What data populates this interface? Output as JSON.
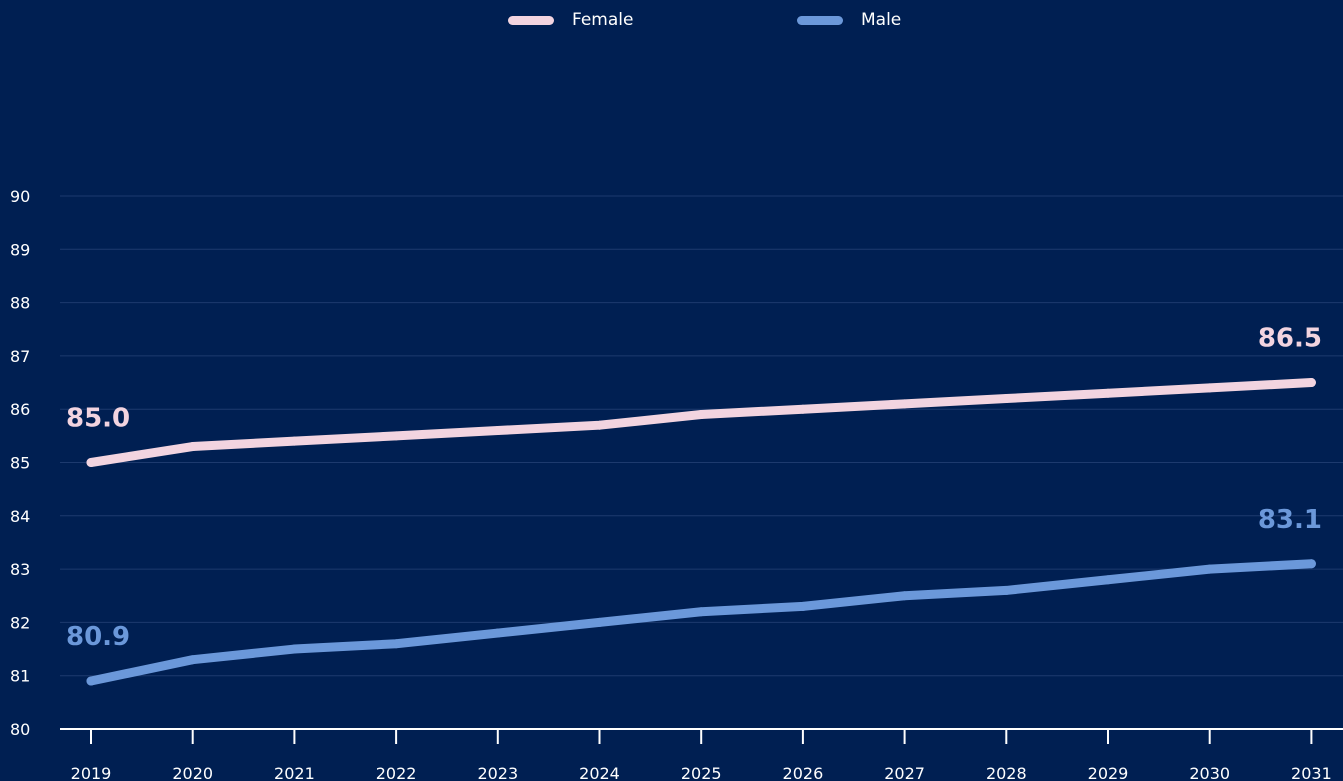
{
  "colors": {
    "background": "#001f52",
    "gridline": "#1d3a6e",
    "axis": "#ffffff",
    "text": "#ffffff"
  },
  "chart_data": {
    "type": "line",
    "x": [
      "2019",
      "2020",
      "2021",
      "2022",
      "2023",
      "2024",
      "2025",
      "2026",
      "2027",
      "2028",
      "2029",
      "2030",
      "2031"
    ],
    "ylim": [
      80,
      90
    ],
    "yticks": [
      80,
      81,
      82,
      83,
      84,
      85,
      86,
      87,
      88,
      89,
      90
    ],
    "grid": true,
    "legend_position": "top-center",
    "series": [
      {
        "name": "Female",
        "color": "#f2d4e0",
        "values": [
          85.0,
          85.3,
          85.4,
          85.5,
          85.6,
          85.7,
          85.9,
          86.0,
          86.1,
          86.2,
          86.3,
          86.4,
          86.5
        ],
        "labels": [
          {
            "index": 0,
            "text": "85.0"
          },
          {
            "index": 12,
            "text": "86.5"
          }
        ]
      },
      {
        "name": "Male",
        "color": "#6b98da",
        "values": [
          80.9,
          81.3,
          81.5,
          81.6,
          81.8,
          82.0,
          82.2,
          82.3,
          82.5,
          82.6,
          82.8,
          83.0,
          83.1
        ],
        "labels": [
          {
            "index": 0,
            "text": "80.9"
          },
          {
            "index": 12,
            "text": "83.1"
          }
        ]
      }
    ]
  }
}
